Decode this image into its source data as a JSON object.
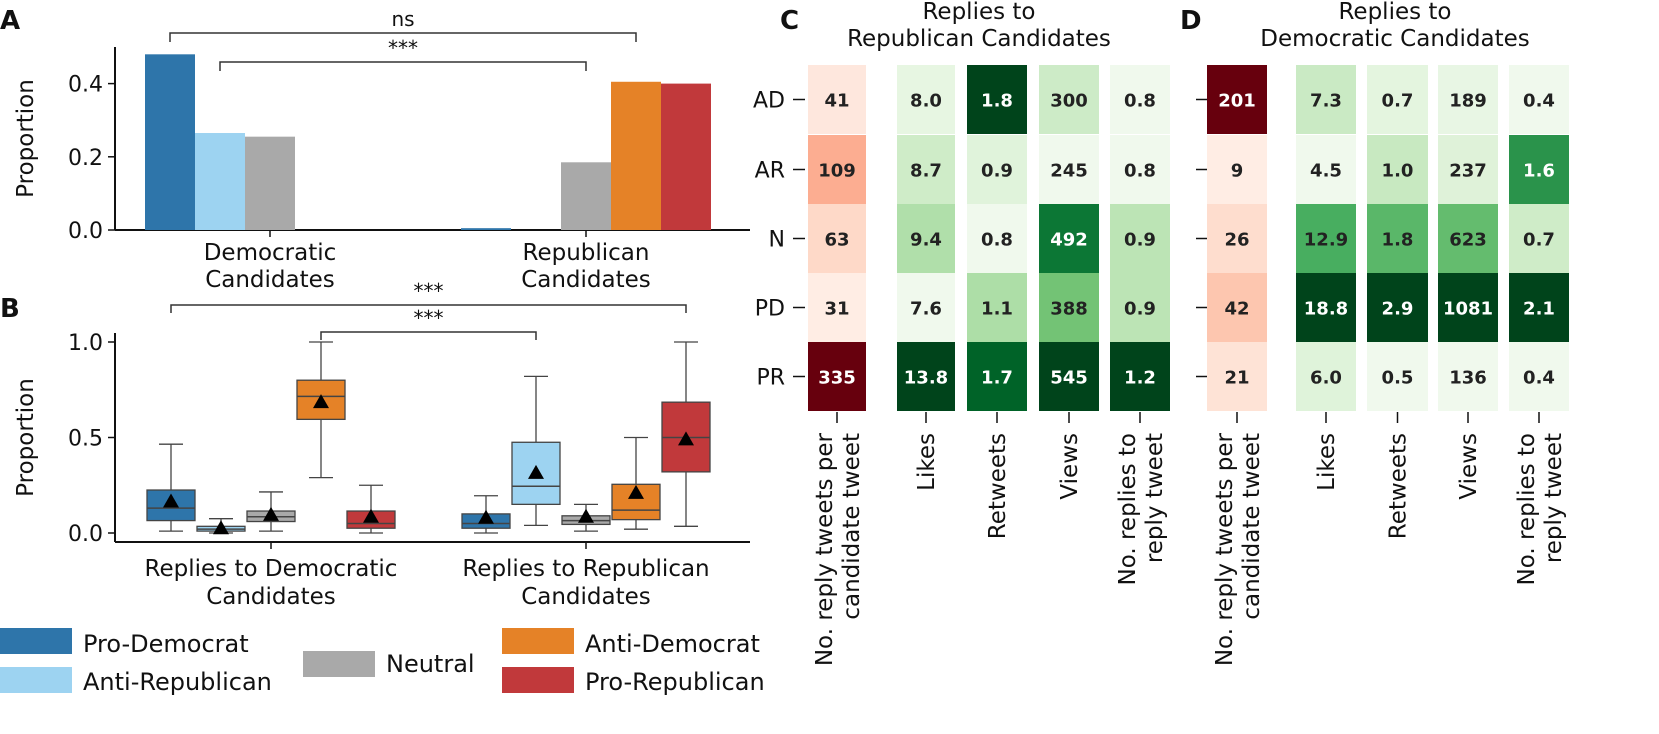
{
  "legend": {
    "items": [
      {
        "label": "Pro-Democrat",
        "color": "#2e75aa"
      },
      {
        "label": "Anti-Republican",
        "color": "#9dd3f1"
      },
      {
        "label": "Neutral",
        "color": "#a9a9a9"
      },
      {
        "label": "Anti-Democrat",
        "color": "#e58227"
      },
      {
        "label": "Pro-Republican",
        "color": "#c1393b"
      }
    ]
  },
  "chart_data": [
    {
      "panel": "A",
      "type": "bar",
      "ylabel": "Proportion",
      "ylim": [
        0,
        0.5
      ],
      "yticks": [
        "0.0",
        "0.2",
        "0.4"
      ],
      "categories": [
        "Democratic\nCandidates",
        "Republican\nCandidates"
      ],
      "series": [
        {
          "name": "Pro-Democrat",
          "values": [
            0.48,
            0.005
          ]
        },
        {
          "name": "Anti-Republican",
          "values": [
            0.265,
            0.0
          ]
        },
        {
          "name": "Neutral",
          "values": [
            0.255,
            0.185
          ]
        },
        {
          "name": "Anti-Democrat",
          "values": [
            0.0,
            0.405
          ]
        },
        {
          "name": "Pro-Republican",
          "values": [
            0.0,
            0.4
          ]
        }
      ],
      "annotations": [
        {
          "text": "ns",
          "from": [
            0,
            0
          ],
          "to": [
            1,
            3
          ]
        },
        {
          "text": "***",
          "from": [
            0,
            1
          ],
          "to": [
            1,
            2
          ]
        }
      ]
    },
    {
      "panel": "B",
      "type": "box",
      "ylabel": "Proportion",
      "ylim": [
        0,
        1.0
      ],
      "yticks": [
        "0.0",
        "0.5",
        "1.0"
      ],
      "categories": [
        "Replies to Democratic\nCandidates",
        "Replies to Republican\nCandidates"
      ],
      "series": [
        {
          "name": "Pro-Democrat",
          "boxes": [
            {
              "min": 0.01,
              "q1": 0.065,
              "median": 0.13,
              "q3": 0.225,
              "max": 0.465,
              "mean": 0.165
            },
            {
              "min": 0.0,
              "q1": 0.025,
              "median": 0.05,
              "q3": 0.1,
              "max": 0.195,
              "mean": 0.08
            }
          ]
        },
        {
          "name": "Anti-Republican",
          "boxes": [
            {
              "min": 0.0,
              "q1": 0.01,
              "median": 0.02,
              "q3": 0.035,
              "max": 0.075,
              "mean": 0.025
            },
            {
              "min": 0.04,
              "q1": 0.15,
              "median": 0.245,
              "q3": 0.475,
              "max": 0.82,
              "mean": 0.315
            }
          ]
        },
        {
          "name": "Neutral",
          "boxes": [
            {
              "min": 0.01,
              "q1": 0.06,
              "median": 0.085,
              "q3": 0.115,
              "max": 0.215,
              "mean": 0.095
            },
            {
              "min": 0.01,
              "q1": 0.045,
              "median": 0.065,
              "q3": 0.09,
              "max": 0.15,
              "mean": 0.085
            }
          ]
        },
        {
          "name": "Anti-Democrat",
          "boxes": [
            {
              "min": 0.29,
              "q1": 0.595,
              "median": 0.715,
              "q3": 0.8,
              "max": 1.0,
              "mean": 0.685
            },
            {
              "min": 0.02,
              "q1": 0.07,
              "median": 0.12,
              "q3": 0.255,
              "max": 0.5,
              "mean": 0.21
            }
          ]
        },
        {
          "name": "Pro-Republican",
          "boxes": [
            {
              "min": 0.0,
              "q1": 0.025,
              "median": 0.05,
              "q3": 0.115,
              "max": 0.25,
              "mean": 0.085
            },
            {
              "min": 0.035,
              "q1": 0.32,
              "median": 0.5,
              "q3": 0.685,
              "max": 1.0,
              "mean": 0.49
            }
          ]
        }
      ],
      "annotations": [
        {
          "text": "***",
          "from": [
            0,
            0
          ],
          "to": [
            1,
            4
          ]
        },
        {
          "text": "***",
          "from": [
            0,
            3
          ],
          "to": [
            1,
            1
          ]
        }
      ]
    },
    {
      "panel": "C",
      "type": "heatmap",
      "title": "Replies to\nRepublican Candidates",
      "rows": [
        "AD",
        "AR",
        "N",
        "PD",
        "PR"
      ],
      "columns": [
        "No. reply tweets per\ncandidate tweet",
        "Likes",
        "Retweets",
        "Views",
        "No. replies to\nreply tweet"
      ],
      "values": [
        [
          "41",
          "8.0",
          "1.8",
          "300",
          "0.8"
        ],
        [
          "109",
          "8.7",
          "0.9",
          "245",
          "0.8"
        ],
        [
          "63",
          "9.4",
          "0.8",
          "492",
          "0.9"
        ],
        [
          "31",
          "7.6",
          "1.1",
          "388",
          "0.9"
        ],
        [
          "335",
          "13.8",
          "1.7",
          "545",
          "1.2"
        ]
      ],
      "colormaps": [
        "Reds",
        "Greens",
        "Greens",
        "Greens",
        "Greens"
      ]
    },
    {
      "panel": "D",
      "type": "heatmap",
      "title": "Replies to\nDemocratic Candidates",
      "rows": [
        "AD",
        "AR",
        "N",
        "PD",
        "PR"
      ],
      "columns": [
        "No. reply tweets per\ncandidate tweet",
        "Likes",
        "Retweets",
        "Views",
        "No. replies to\nreply tweet"
      ],
      "values": [
        [
          "201",
          "7.3",
          "0.7",
          "189",
          "0.4"
        ],
        [
          "9",
          "4.5",
          "1.0",
          "237",
          "1.6"
        ],
        [
          "26",
          "12.9",
          "1.8",
          "623",
          "0.7"
        ],
        [
          "42",
          "18.8",
          "2.9",
          "1081",
          "2.1"
        ],
        [
          "21",
          "6.0",
          "0.5",
          "136",
          "0.4"
        ]
      ],
      "colormaps": [
        "Reds",
        "Greens",
        "Greens",
        "Greens",
        "Greens"
      ]
    }
  ]
}
